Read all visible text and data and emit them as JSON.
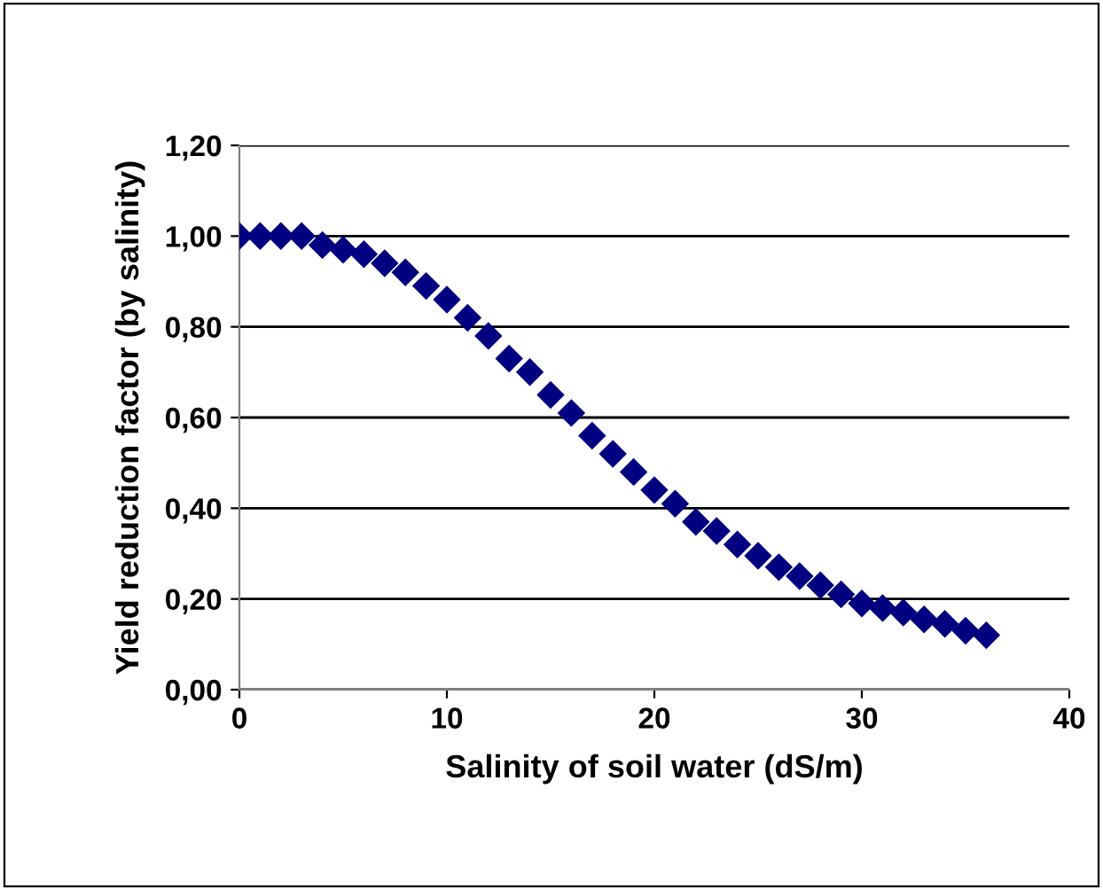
{
  "chart_data": {
    "type": "scatter",
    "xlabel": "Salinity of soil water (dS/m)",
    "ylabel": "Yield reduction factor (by salinity)",
    "x": [
      0,
      1,
      2,
      3,
      4,
      5,
      6,
      7,
      8,
      9,
      10,
      11,
      12,
      13,
      14,
      15,
      16,
      17,
      18,
      19,
      20,
      21,
      22,
      23,
      24,
      25,
      26,
      27,
      28,
      29,
      30,
      31,
      32,
      33,
      34,
      35,
      36
    ],
    "series": [
      {
        "color": "#000080",
        "values": [
          1.0,
          1.0,
          1.0,
          1.0,
          0.98,
          0.97,
          0.96,
          0.94,
          0.92,
          0.89,
          0.86,
          0.82,
          0.78,
          0.73,
          0.7,
          0.65,
          0.61,
          0.56,
          0.52,
          0.48,
          0.44,
          0.41,
          0.37,
          0.35,
          0.32,
          0.295,
          0.27,
          0.25,
          0.23,
          0.21,
          0.19,
          0.18,
          0.17,
          0.155,
          0.145,
          0.13,
          0.12
        ]
      }
    ],
    "xlim": [
      0,
      40
    ],
    "xticks": [
      0,
      10,
      20,
      30,
      40
    ],
    "ylim": [
      0,
      1.2
    ],
    "yticks": [
      {
        "value": 0,
        "label": "0,00"
      },
      {
        "value": 0.2,
        "label": "0,20"
      },
      {
        "value": 0.4,
        "label": "0,40"
      },
      {
        "value": 0.6,
        "label": "0,60"
      },
      {
        "value": 0.8,
        "label": "0,80"
      },
      {
        "value": 1.0,
        "label": "1,00"
      },
      {
        "value": 1.2,
        "label": "1,20"
      }
    ],
    "grid": "y",
    "marker": "diamond",
    "legend": false
  }
}
